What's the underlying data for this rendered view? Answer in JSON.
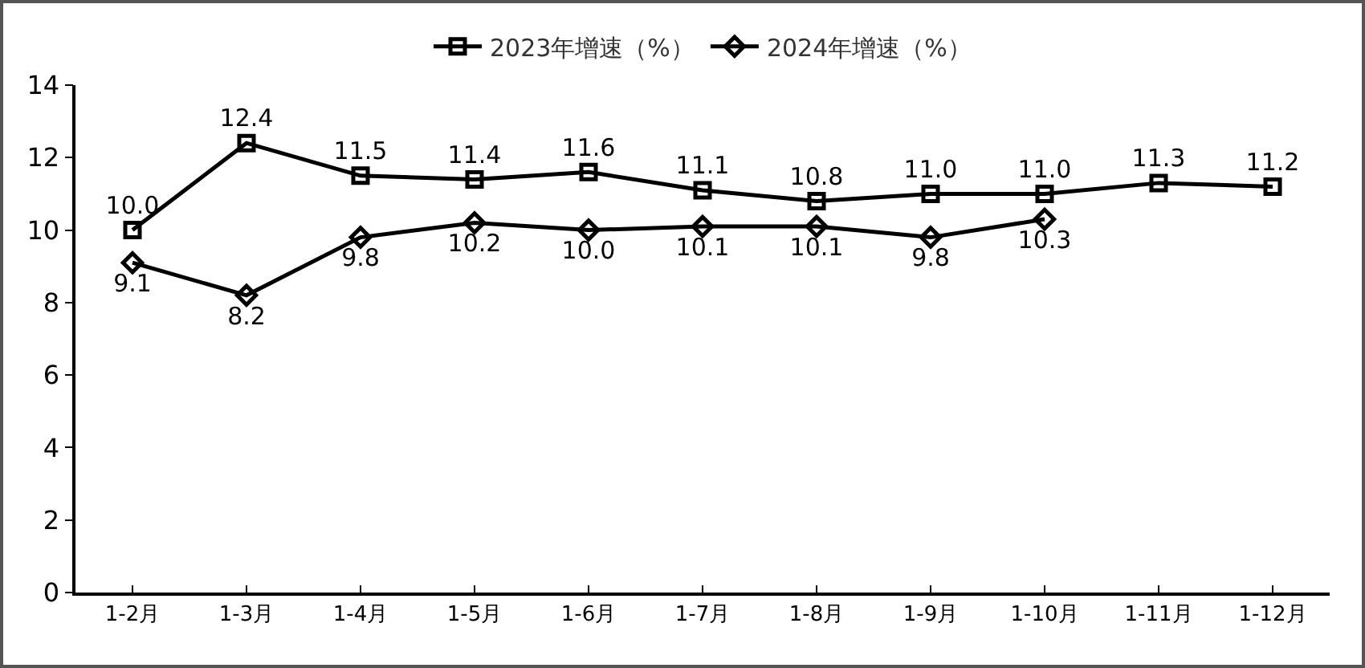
{
  "chart_data": {
    "type": "line",
    "categories": [
      "1-2月",
      "1-3月",
      "1-4月",
      "1-5月",
      "1-6月",
      "1-7月",
      "1-8月",
      "1-9月",
      "1-10月",
      "1-11月",
      "1-12月"
    ],
    "series": [
      {
        "name": "2023年增速（%）",
        "color": "#000000",
        "marker": "square",
        "values": [
          10.0,
          12.4,
          11.5,
          11.4,
          11.6,
          11.1,
          10.8,
          11.0,
          11.0,
          11.3,
          11.2
        ],
        "value_labels": [
          "10.0",
          "12.4",
          "11.5",
          "11.4",
          "11.6",
          "11.1",
          "10.8",
          "11.0",
          "11.0",
          "11.3",
          "11.2"
        ]
      },
      {
        "name": "2024年增速（%）",
        "color": "#000000",
        "marker": "diamond",
        "values": [
          9.1,
          8.2,
          9.8,
          10.2,
          10.0,
          10.1,
          10.1,
          9.8,
          10.3,
          null,
          null
        ],
        "value_labels": [
          "9.1",
          "8.2",
          "9.8",
          "10.2",
          "10.0",
          "10.1",
          "10.1",
          "9.8",
          "10.3",
          null,
          null
        ]
      }
    ],
    "ylim": [
      0,
      14
    ],
    "yticks": [
      0,
      2,
      4,
      6,
      8,
      10,
      12,
      14
    ],
    "legend": "top",
    "grid": false,
    "line_style": "solid"
  }
}
